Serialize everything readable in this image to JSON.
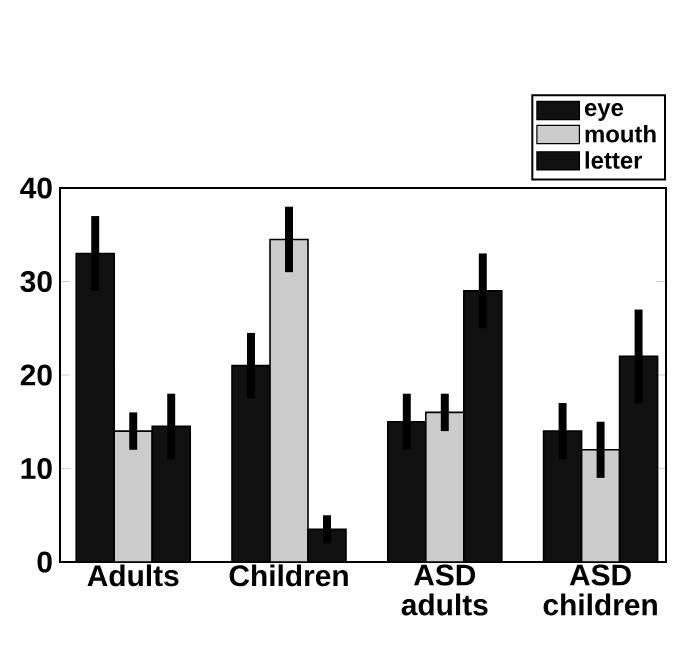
{
  "chart_data": {
    "type": "bar",
    "categories": [
      "Adults",
      "Children",
      "ASD adults",
      "ASD children"
    ],
    "series": [
      {
        "name": "eye",
        "color": "#111111",
        "values": [
          33,
          21,
          15,
          14
        ],
        "errors": [
          4,
          3.5,
          3,
          3
        ]
      },
      {
        "name": "mouth",
        "color": "#cccccc",
        "values": [
          14,
          34.5,
          16,
          12
        ],
        "errors": [
          2,
          3.5,
          2,
          3
        ]
      },
      {
        "name": "letter",
        "color": "#111111",
        "values": [
          14.5,
          3.5,
          29,
          22
        ],
        "errors": [
          3.5,
          1.5,
          4,
          5
        ]
      }
    ],
    "ylim": [
      0,
      40
    ],
    "yticks": [
      0,
      10,
      20,
      30,
      40
    ],
    "grid": false,
    "legend": "top right"
  }
}
